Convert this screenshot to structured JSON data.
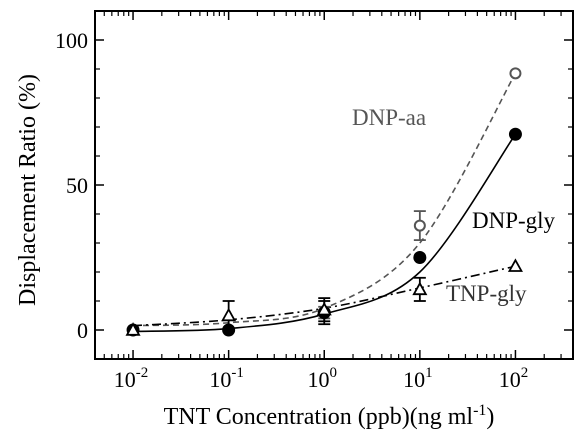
{
  "chart_data": {
    "type": "scatter",
    "x_scale": "log",
    "xlim": [
      0.004,
      400
    ],
    "ylim": [
      -10,
      110
    ],
    "grid": false,
    "title": "",
    "xlabel": "TNT Concentration (ppb)(ng ml",
    "xlabel_superscript": "-1",
    "xlabel_suffix": ")",
    "ylabel": "Displacement Ratio (%)",
    "x_ticks": [
      {
        "value": 0.01,
        "base": "10",
        "exp": "-2"
      },
      {
        "value": 0.1,
        "base": "10",
        "exp": "-1"
      },
      {
        "value": 1,
        "base": "10",
        "exp": "0"
      },
      {
        "value": 10,
        "base": "10",
        "exp": "1"
      },
      {
        "value": 100,
        "base": "10",
        "exp": "2"
      }
    ],
    "y_ticks": [
      0,
      50,
      100
    ],
    "series": [
      {
        "name": "DNP-aa",
        "marker": "open-circle",
        "line": "dashed",
        "color": "#555555",
        "x": [
          0.01,
          0.1,
          1,
          10,
          100
        ],
        "y": [
          0,
          0,
          6,
          36,
          88.5
        ],
        "yerr": [
          0,
          0,
          2,
          5,
          0
        ],
        "fit_y": [
          1.5,
          2.5,
          7.5,
          30,
          88.5
        ]
      },
      {
        "name": "DNP-gly",
        "marker": "filled-circle",
        "line": "solid",
        "color": "#000000",
        "x": [
          0.01,
          0.1,
          1,
          10,
          100
        ],
        "y": [
          0,
          0,
          6,
          25,
          67.5
        ],
        "yerr": [
          0,
          0,
          4,
          0,
          0
        ],
        "fit_y": [
          -0.5,
          0.5,
          5.5,
          20,
          67.5
        ]
      },
      {
        "name": "TNP-gly",
        "marker": "open-triangle",
        "line": "dash-dot",
        "color": "#000000",
        "x": [
          0.01,
          0.1,
          1,
          10,
          100
        ],
        "y": [
          0,
          5,
          7,
          14,
          22
        ],
        "yerr": [
          0,
          5,
          4,
          4,
          0
        ],
        "fit_y": [
          1.5,
          3.5,
          7.5,
          14.5,
          22
        ]
      }
    ],
    "annotations": [
      {
        "text": "DNP-aa",
        "color": "#555555"
      },
      {
        "text": "DNP-gly",
        "color": "#000000"
      },
      {
        "text": "TNP-gly",
        "color": "#333333"
      }
    ]
  }
}
